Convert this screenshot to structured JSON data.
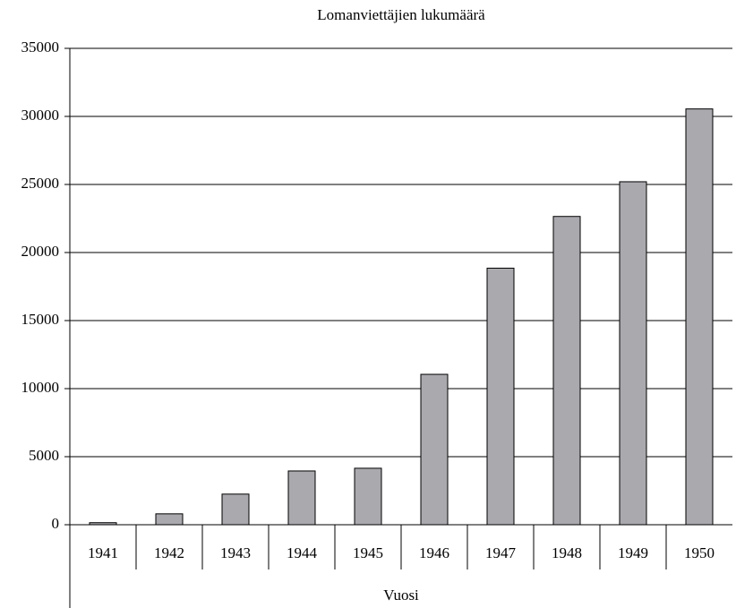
{
  "chart_data": {
    "type": "bar",
    "title": "Lomanviettäjien lukumäärä",
    "x_label": "Vuosi",
    "categories": [
      "1941",
      "1942",
      "1943",
      "1944",
      "1945",
      "1946",
      "1947",
      "1948",
      "1949",
      "1950"
    ],
    "values": [
      150,
      800,
      2250,
      3950,
      4150,
      11050,
      18850,
      22650,
      25200,
      30550
    ],
    "color": "#a9a9ae",
    "ylim": [
      0,
      35000
    ],
    "yticks": [
      0,
      5000,
      10000,
      15000,
      20000,
      25000,
      30000,
      35000
    ],
    "grid": true
  }
}
